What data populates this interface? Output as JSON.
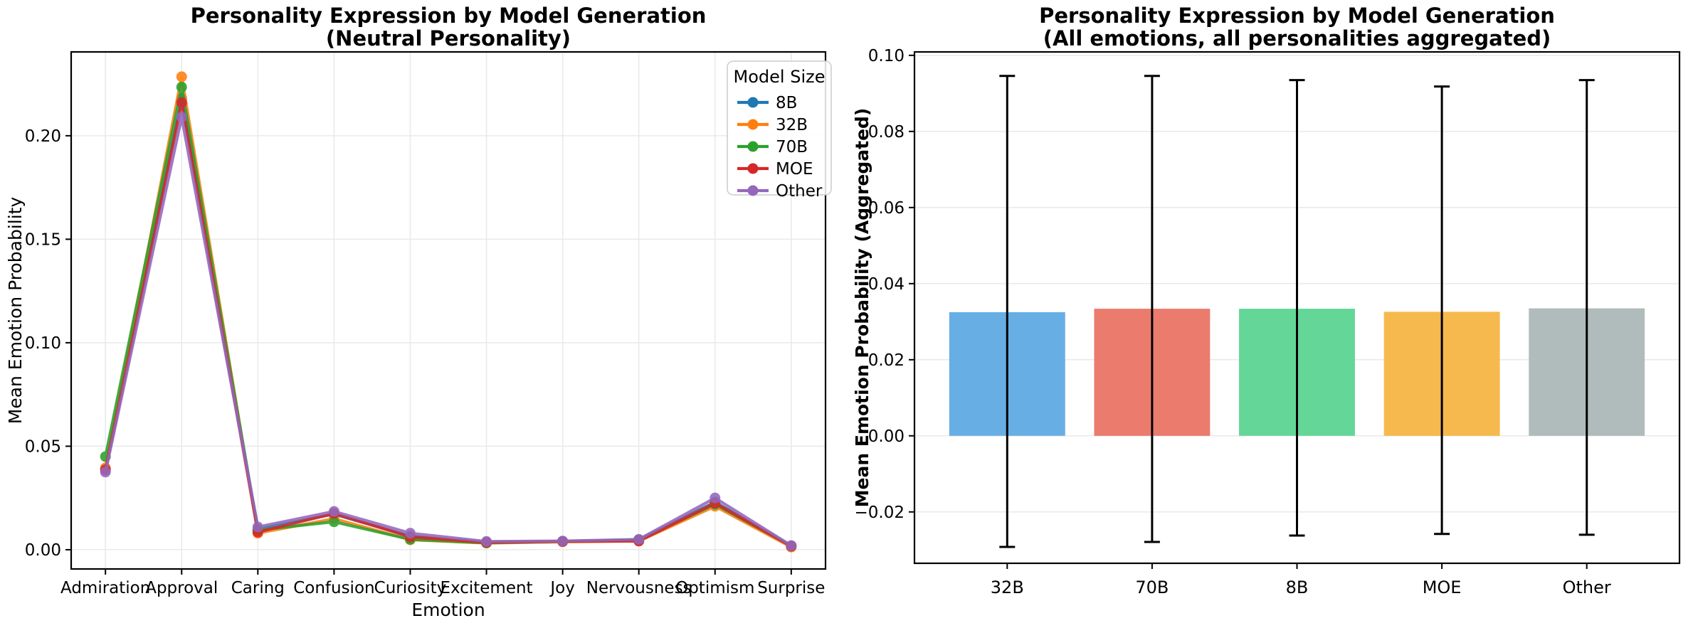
{
  "figure": {
    "background": "#ffffff",
    "text_color": "#000000",
    "grid_color": "#e9e9e9"
  },
  "chart_data": [
    {
      "type": "line",
      "title": "Personality Expression by Model Generation",
      "subtitle": "(Neutral Personality)",
      "xlabel": "Emotion",
      "ylabel": "Mean Emotion Probability",
      "legend_title": "Model Size",
      "legend_position": "upper right",
      "grid": "both",
      "ylim": [
        -0.0093,
        0.2405
      ],
      "yticks": [
        0.0,
        0.05,
        0.1,
        0.15,
        0.2
      ],
      "categories": [
        "Admiration",
        "Approval",
        "Caring",
        "Confusion",
        "Curiosity",
        "Excitement",
        "Joy",
        "Nervousness",
        "Optimism",
        "Surprise"
      ],
      "series": [
        {
          "name": "8B",
          "color": "#1f77b4",
          "values": [
            0.039,
            0.218,
            0.01,
            0.0172,
            0.0065,
            0.0035,
            0.004,
            0.0048,
            0.023,
            0.0018
          ]
        },
        {
          "name": "32B",
          "color": "#ff7f0e",
          "values": [
            0.0395,
            0.2285,
            0.008,
            0.015,
            0.0048,
            0.0032,
            0.0038,
            0.0042,
            0.021,
            0.0013
          ]
        },
        {
          "name": "70B",
          "color": "#2ca02c",
          "values": [
            0.045,
            0.2235,
            0.0095,
            0.0135,
            0.005,
            0.0033,
            0.004,
            0.0046,
            0.022,
            0.0018
          ]
        },
        {
          "name": "MOE",
          "color": "#d62728",
          "values": [
            0.0385,
            0.216,
            0.0085,
            0.0175,
            0.0062,
            0.0035,
            0.004,
            0.0042,
            0.0225,
            0.0017
          ]
        },
        {
          "name": "Other",
          "color": "#9467bd",
          "values": [
            0.0375,
            0.209,
            0.011,
            0.0185,
            0.008,
            0.004,
            0.0042,
            0.005,
            0.025,
            0.002
          ]
        }
      ]
    },
    {
      "type": "bar",
      "title": "Personality Expression by Model Generation",
      "subtitle": "(All emotions, all personalities aggregated)",
      "xlabel": "",
      "ylabel": "Mean Emotion Probability (Aggregated)",
      "grid": "y",
      "ylim": [
        -0.0335,
        0.1009
      ],
      "yticks": [
        -0.02,
        0.0,
        0.02,
        0.04,
        0.06,
        0.08,
        0.1
      ],
      "categories": [
        "32B",
        "70B",
        "8B",
        "MOE",
        "Other"
      ],
      "bars": [
        {
          "label": "32B",
          "value": 0.0325,
          "whisker_top": 0.0946,
          "whisker_bottom": -0.0292,
          "color": "#67aee4"
        },
        {
          "label": "70B",
          "value": 0.0334,
          "whisker_top": 0.0946,
          "whisker_bottom": -0.0279,
          "color": "#eb7b6d"
        },
        {
          "label": "8B",
          "value": 0.0334,
          "whisker_top": 0.0935,
          "whisker_bottom": -0.0262,
          "color": "#63d698"
        },
        {
          "label": "MOE",
          "value": 0.0326,
          "whisker_top": 0.0918,
          "whisker_bottom": -0.0258,
          "color": "#f6b94d"
        },
        {
          "label": "Other",
          "value": 0.0335,
          "whisker_top": 0.0935,
          "whisker_bottom": -0.026,
          "color": "#b0bcbc"
        }
      ],
      "errorbar_color": "#000000"
    }
  ]
}
